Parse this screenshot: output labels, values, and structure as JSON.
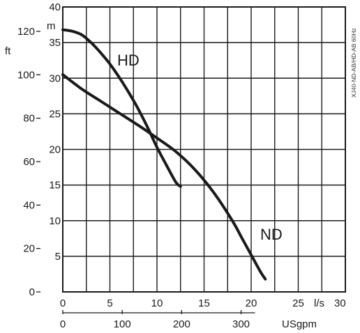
{
  "chart_data": {
    "type": "line",
    "side_note": "XJ40-ND-AB/HD-AB 60Hz",
    "x_axis_primary": {
      "unit": "l/s",
      "range": [
        0,
        30
      ],
      "ticks": [
        0,
        5,
        10,
        15,
        20,
        25
      ],
      "end_label": "30"
    },
    "x_axis_secondary": {
      "unit": "USgpm",
      "ticks": [
        0,
        100,
        200,
        300
      ]
    },
    "y_axis_primary": {
      "unit": "m",
      "range": [
        0,
        40
      ],
      "ticks": [
        5,
        10,
        15,
        20,
        25,
        30,
        35,
        40
      ]
    },
    "y_axis_secondary": {
      "unit": "ft",
      "ticks": [
        0,
        20,
        40,
        60,
        80,
        100,
        120
      ]
    },
    "grid": true,
    "series": [
      {
        "name": "HD",
        "x": [
          0,
          1,
          2,
          3,
          4,
          5,
          6,
          7,
          8,
          9,
          10,
          11,
          12,
          12.5
        ],
        "y": [
          36.8,
          36.6,
          36.1,
          35.0,
          33.6,
          32.0,
          30.1,
          28.0,
          25.7,
          23.1,
          20.3,
          17.8,
          15.4,
          14.8
        ]
      },
      {
        "name": "ND",
        "x": [
          0,
          2,
          4,
          6,
          8,
          10,
          12,
          14,
          16,
          18,
          19,
          20,
          21,
          21.5
        ],
        "y": [
          30.5,
          28.5,
          26.8,
          25.1,
          23.4,
          21.6,
          19.7,
          17.2,
          14.0,
          10.0,
          7.6,
          5.2,
          2.8,
          1.8
        ]
      }
    ]
  }
}
